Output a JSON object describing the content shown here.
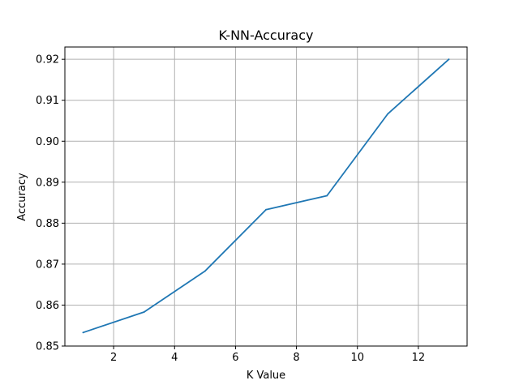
{
  "chart_data": {
    "type": "line",
    "title": "K-NN-Accuracy",
    "xlabel": "K Value",
    "ylabel": "Accuracy",
    "xlim": [
      0.4,
      13.6
    ],
    "ylim": [
      0.85,
      0.923
    ],
    "xticks": [
      2,
      4,
      6,
      8,
      10,
      12
    ],
    "xtick_labels": [
      "2",
      "4",
      "6",
      "8",
      "10",
      "12"
    ],
    "yticks": [
      0.85,
      0.86,
      0.87,
      0.88,
      0.89,
      0.9,
      0.91,
      0.92
    ],
    "ytick_labels": [
      "0.85",
      "0.86",
      "0.87",
      "0.88",
      "0.89",
      "0.90",
      "0.91",
      "0.92"
    ],
    "grid": true,
    "series": [
      {
        "color": "#1f77b4",
        "x": [
          1,
          3,
          5,
          7,
          9,
          11,
          13
        ],
        "y": [
          0.8533,
          0.8583,
          0.8683,
          0.8833,
          0.8867,
          0.9067,
          0.92
        ]
      }
    ]
  }
}
